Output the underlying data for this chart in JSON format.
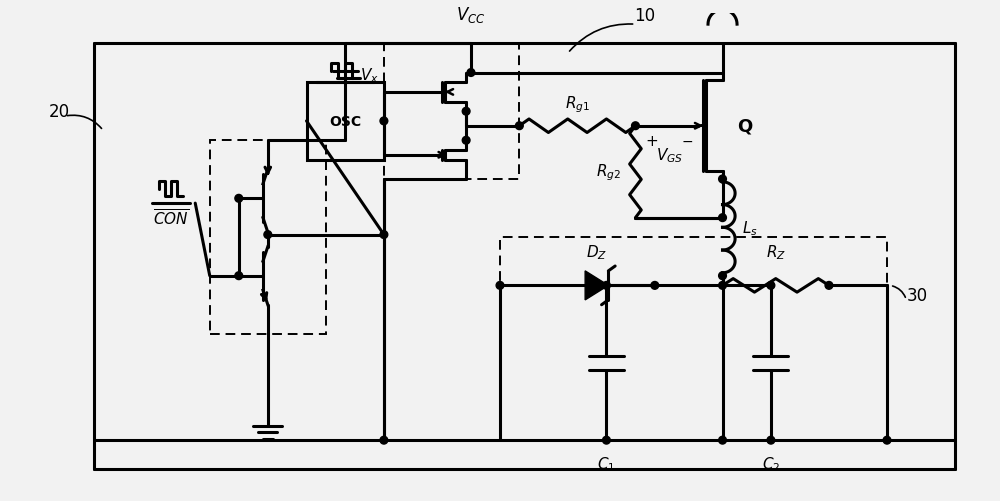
{
  "bg_color": "#f2f2f2",
  "line_color": "#000000",
  "lw": 2.2,
  "dlw": 1.4
}
